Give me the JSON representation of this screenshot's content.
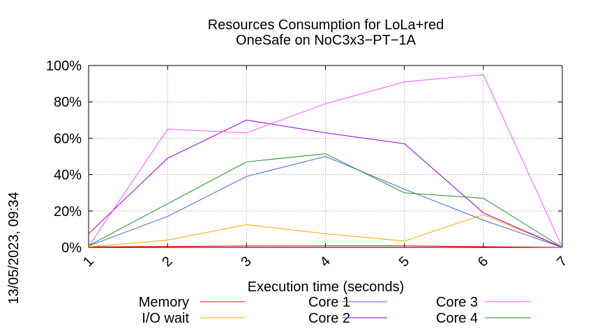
{
  "chart_data": {
    "type": "line",
    "title_lines": [
      "Resources Consumption for LoLa+red",
      "OneSafe on NoC3x3−PT−1A"
    ],
    "xlabel": "Execution time (seconds)",
    "ylabel": "",
    "side_label": "13/05/2023, 09:34",
    "x": [
      1,
      2,
      3,
      4,
      5,
      6,
      7
    ],
    "xlim": [
      1,
      7
    ],
    "ylim": [
      0,
      100
    ],
    "x_ticks": [
      "1",
      "2",
      "3",
      "4",
      "5",
      "6",
      "7"
    ],
    "y_ticks": [
      {
        "value": 0,
        "label": "0%"
      },
      {
        "value": 20,
        "label": "20%"
      },
      {
        "value": 40,
        "label": "40%"
      },
      {
        "value": 60,
        "label": "60%"
      },
      {
        "value": 80,
        "label": "80%"
      },
      {
        "value": 100,
        "label": "100%"
      }
    ],
    "grid": true,
    "legend_position": "bottom",
    "series": [
      {
        "name": "Memory",
        "color": "#ff0000",
        "values": [
          0.3,
          0.5,
          0.8,
          0.9,
          0.9,
          0.4,
          0
        ]
      },
      {
        "name": "I/O wait",
        "color": "#ffa500",
        "values": [
          0.3,
          4,
          12.5,
          7.5,
          3.5,
          18,
          0
        ]
      },
      {
        "name": "Core 1",
        "color": "#4169e1",
        "values": [
          0.8,
          17,
          39,
          50,
          32,
          15,
          0
        ]
      },
      {
        "name": "Core 2",
        "color": "#9400d3",
        "values": [
          7.5,
          49,
          70,
          63,
          57,
          19,
          0
        ]
      },
      {
        "name": "Core 3",
        "color": "#ff55ff",
        "values": [
          0.5,
          65,
          63,
          79,
          91,
          95,
          0
        ]
      },
      {
        "name": "Core 4",
        "color": "#228b22",
        "values": [
          1,
          24,
          47,
          51.5,
          30,
          27,
          0
        ]
      }
    ]
  }
}
